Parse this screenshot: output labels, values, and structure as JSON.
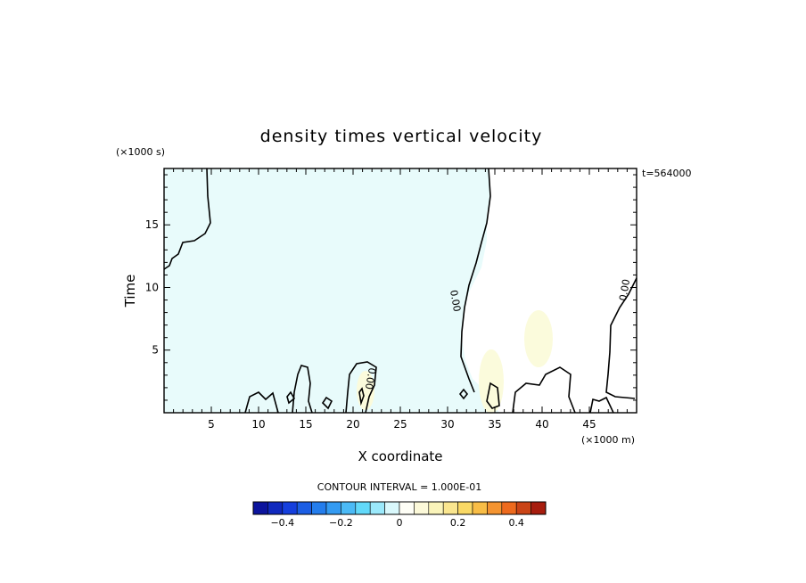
{
  "chart_data": {
    "type": "heatmap",
    "title": "density times vertical velocity",
    "xlabel": "X coordinate",
    "ylabel": "Time",
    "x_unit": "(×1000 m)",
    "y_unit": "(×1000 s)",
    "time_stamp": "t=564000",
    "xlim": [
      0,
      50
    ],
    "ylim": [
      0,
      19.5
    ],
    "x_ticks": [
      5,
      10,
      15,
      20,
      25,
      30,
      35,
      40,
      45
    ],
    "y_ticks": [
      5,
      10,
      15
    ],
    "contour_interval_text": "CONTOUR INTERVAL = 1.000E-01",
    "contour_labels": [
      "0.00",
      "0.00",
      "0.00"
    ],
    "colorbar": {
      "range": [
        -0.5,
        0.5
      ],
      "step": 0.05,
      "tick_values": [
        -0.4,
        -0.2,
        0,
        0.2,
        0.4
      ],
      "tick_labels": [
        "−0.4",
        "−0.2",
        "0",
        "0.2",
        "0.4"
      ]
    },
    "fields": [
      {
        "region": "left area (x 0–~31)",
        "value": -0.03
      },
      {
        "region": "right area (x ~31–50)",
        "value": 0.0
      },
      {
        "region": "warm patch near x 34–36, t 0–5",
        "value": 0.05
      },
      {
        "region": "warm patch near x 38–41, t 2–8",
        "value": 0.03
      }
    ]
  },
  "colors": {
    "negative_light": "#e8fbfb",
    "positive_light": "#fbfbdc",
    "contour": "#000000"
  }
}
